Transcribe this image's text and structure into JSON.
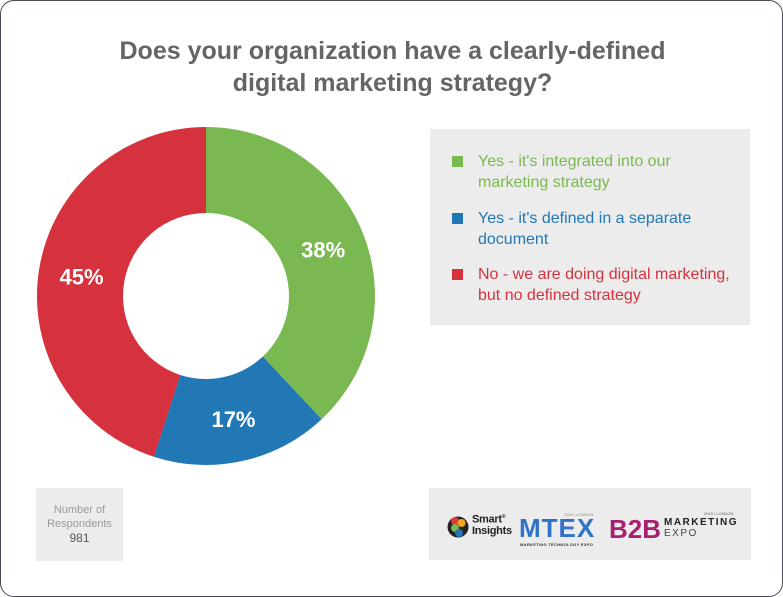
{
  "title": {
    "line1": "Does your organization have a clearly-defined",
    "line2": "digital marketing strategy?"
  },
  "legend": {
    "items": [
      {
        "line1": "Yes - it's integrated into our",
        "line2": "marketing strategy",
        "color": "#7ab851"
      },
      {
        "line1": "Yes - it's defined in a separate",
        "line2": "document",
        "color": "#2278b5"
      },
      {
        "line1": "No - we are doing digital marketing,",
        "line2": "but no defined strategy",
        "color": "#d5323e"
      }
    ]
  },
  "respondents": {
    "label_line1": "Number of",
    "label_line2": "Respondents",
    "value": "981"
  },
  "logos": {
    "smart_insights": {
      "line1": "Smart",
      "line2": "Insights",
      "mark": "®"
    },
    "mtex": {
      "top": "2019 / LONDON",
      "name": "MTEX",
      "subtitle": "MARKETING TECHNOLOGY EXPO"
    },
    "b2b": {
      "top": "2019 / LONDON",
      "name": "B2B",
      "line1": "MARKETING",
      "line2": "EXPO"
    }
  },
  "chart_data": {
    "type": "pie",
    "subtype": "donut",
    "title": "Does your organization have a clearly-defined digital marketing strategy?",
    "categories": [
      "Yes - it's integrated into our marketing strategy",
      "Yes - it's defined in a separate document",
      "No - we are doing digital marketing, but no defined strategy"
    ],
    "values": [
      38,
      17,
      45
    ],
    "labels": [
      "38%",
      "17%",
      "45%"
    ],
    "colors": [
      "#7ab851",
      "#2278b5",
      "#d5323e"
    ],
    "start_angle": "12 o'clock, clockwise",
    "legend_position": "right",
    "annotation": "Number of Respondents 981"
  }
}
